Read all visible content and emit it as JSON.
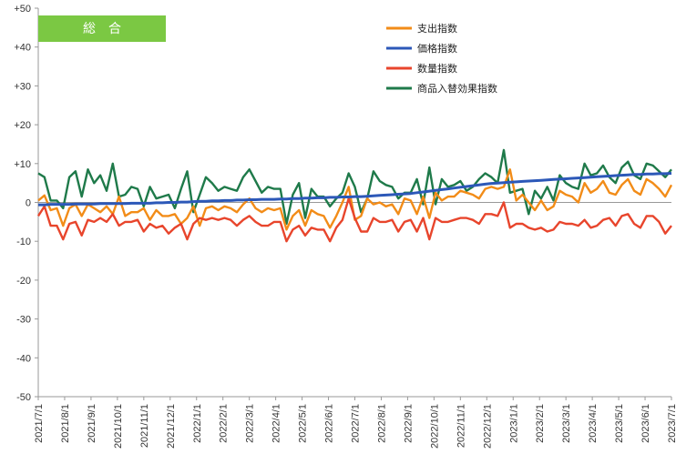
{
  "chart_data": {
    "type": "line",
    "title": "総　合",
    "title_color": "#7bc843",
    "ylim": [
      -50,
      50
    ],
    "yticks": [
      "+50",
      "+40",
      "+30",
      "+20",
      "+10",
      "0",
      "-10",
      "-20",
      "-30",
      "-40",
      "-50"
    ],
    "ytick_values": [
      50,
      40,
      30,
      20,
      10,
      0,
      -10,
      -20,
      -30,
      -40,
      -50
    ],
    "xtick_labels": [
      "2021/7/1",
      "2021/8/1",
      "2021/9/1",
      "2021/10/1",
      "2021/11/1",
      "2021/12/1",
      "2022/1/1",
      "2022/2/1",
      "2022/3/1",
      "2022/4/1",
      "2022/5/1",
      "2022/6/1",
      "2022/7/1",
      "2022/8/1",
      "2022/9/1",
      "2022/10/1",
      "2022/11/1",
      "2022/12/1",
      "2023/1/1",
      "2023/2/1",
      "2023/3/1",
      "2023/4/1",
      "2023/5/1",
      "2023/6/1",
      "2023/7/1"
    ],
    "points_per_month": 4,
    "grid": false,
    "legend_position": "top-right",
    "series": [
      {
        "name": "支出指数",
        "color": "#f28c18",
        "values": [
          0.5,
          1.8,
          -2.0,
          -1.5,
          -6.0,
          -1.5,
          -0.5,
          -3.5,
          -0.5,
          -1.5,
          -2.5,
          -1.0,
          -3.0,
          1.5,
          -3.5,
          -2.5,
          -2.5,
          -1.5,
          -4.5,
          -2.0,
          -3.5,
          -3.5,
          -3.0,
          -5.5,
          -4.0,
          -1.0,
          -6.0,
          -1.5,
          -1.0,
          -2.0,
          -1.0,
          -1.5,
          -2.5,
          -0.5,
          1.0,
          -1.5,
          -2.5,
          -1.5,
          -2.0,
          -1.5,
          -7.0,
          -3.5,
          -2.0,
          -6.0,
          -2.0,
          -3.0,
          -3.5,
          -6.5,
          -3.5,
          0.0,
          4.0,
          -4.5,
          -3.5,
          1.0,
          -0.5,
          0.0,
          -1.0,
          -0.5,
          -3.0,
          1.0,
          0.5,
          -3.0,
          1.5,
          -4.0,
          2.5,
          0.5,
          1.5,
          1.5,
          3.0,
          2.5,
          2.0,
          1.0,
          3.5,
          4.0,
          3.5,
          4.0,
          8.5,
          0.5,
          2.0,
          0.0,
          -2.0,
          0.5,
          -2.0,
          -1.0,
          3.0,
          2.0,
          1.5,
          0.0,
          5.0,
          2.5,
          3.5,
          5.5,
          2.5,
          2.0,
          4.5,
          6.0,
          3.0,
          2.0,
          6.0,
          5.0,
          3.5,
          1.5,
          4.5
        ]
      },
      {
        "name": "価格指数",
        "color": "#2c58b8",
        "values": [
          -0.6,
          -0.6,
          -0.5,
          -0.5,
          -0.5,
          -0.5,
          -0.4,
          -0.4,
          -0.4,
          -0.4,
          -0.3,
          -0.3,
          -0.3,
          -0.3,
          -0.3,
          -0.2,
          -0.2,
          -0.2,
          -0.2,
          -0.1,
          -0.1,
          0.0,
          0.0,
          0.1,
          0.1,
          0.2,
          0.3,
          0.3,
          0.4,
          0.4,
          0.5,
          0.5,
          0.6,
          0.6,
          0.7,
          0.7,
          0.8,
          0.8,
          0.8,
          0.9,
          0.9,
          1.0,
          1.0,
          1.1,
          1.1,
          1.2,
          1.2,
          1.3,
          1.3,
          1.4,
          1.4,
          1.5,
          1.5,
          1.6,
          1.7,
          1.8,
          1.9,
          2.0,
          2.1,
          2.2,
          2.3,
          2.5,
          2.7,
          2.9,
          3.1,
          3.3,
          3.5,
          3.7,
          3.9,
          4.1,
          4.3,
          4.5,
          4.7,
          4.9,
          5.0,
          5.1,
          5.2,
          5.3,
          5.4,
          5.5,
          5.6,
          5.7,
          5.8,
          5.9,
          6.0,
          6.1,
          6.2,
          6.3,
          6.4,
          6.5,
          6.6,
          6.7,
          6.8,
          6.9,
          7.0,
          7.1,
          7.2,
          7.2,
          7.3,
          7.3,
          7.4,
          7.4,
          7.5
        ]
      },
      {
        "name": "数量指数",
        "color": "#e8452c",
        "values": [
          -3.5,
          -1.0,
          -6.0,
          -6.0,
          -9.5,
          -5.5,
          -5.0,
          -8.5,
          -4.5,
          -5.0,
          -4.0,
          -5.0,
          -3.0,
          -6.0,
          -5.0,
          -5.0,
          -4.5,
          -7.5,
          -5.5,
          -6.5,
          -6.0,
          -8.0,
          -6.5,
          -5.5,
          -9.5,
          -5.5,
          -4.0,
          -4.5,
          -4.0,
          -4.5,
          -4.0,
          -4.5,
          -6.0,
          -4.5,
          -3.5,
          -5.0,
          -6.0,
          -6.0,
          -5.0,
          -5.0,
          -10.0,
          -7.0,
          -6.0,
          -8.5,
          -6.5,
          -7.0,
          -7.0,
          -10.0,
          -6.5,
          -4.5,
          1.0,
          -4.0,
          -7.5,
          -7.5,
          -4.0,
          -5.0,
          -5.0,
          -4.5,
          -7.5,
          -5.0,
          -4.5,
          -7.5,
          -4.0,
          -9.5,
          -4.0,
          -5.0,
          -5.0,
          -4.5,
          -4.0,
          -4.0,
          -4.5,
          -5.5,
          -3.0,
          -3.0,
          -3.5,
          0.0,
          -6.5,
          -5.5,
          -5.5,
          -6.5,
          -7.0,
          -6.5,
          -7.5,
          -7.0,
          -5.0,
          -5.5,
          -5.5,
          -6.0,
          -4.5,
          -6.5,
          -6.0,
          -4.5,
          -4.0,
          -6.0,
          -3.5,
          -3.0,
          -5.5,
          -6.5,
          -3.5,
          -3.5,
          -5.0,
          -8.0,
          -6.0
        ]
      },
      {
        "name": "商品入替効果指数",
        "color": "#1f7a4a",
        "values": [
          7.5,
          6.5,
          0.5,
          0.5,
          -1.5,
          6.5,
          8.0,
          1.5,
          8.5,
          5.0,
          7.0,
          3.0,
          10.0,
          1.5,
          2.0,
          4.0,
          3.5,
          -1.0,
          4.0,
          1.0,
          1.5,
          2.0,
          -1.5,
          3.5,
          8.0,
          -2.5,
          2.0,
          6.5,
          5.0,
          3.0,
          4.0,
          3.5,
          3.0,
          6.5,
          8.5,
          5.5,
          2.5,
          4.0,
          3.5,
          3.5,
          -5.5,
          2.0,
          5.0,
          -4.0,
          3.5,
          1.5,
          1.5,
          -1.0,
          1.0,
          2.5,
          7.5,
          4.0,
          -2.5,
          1.0,
          8.0,
          5.5,
          4.5,
          4.0,
          1.0,
          2.5,
          2.5,
          6.0,
          -0.5,
          9.0,
          -0.5,
          6.0,
          4.0,
          4.5,
          5.5,
          3.0,
          4.0,
          6.0,
          7.5,
          6.5,
          5.0,
          13.5,
          2.5,
          3.0,
          3.5,
          -3.0,
          3.0,
          1.0,
          4.0,
          0.5,
          7.0,
          5.0,
          4.0,
          3.5,
          10.0,
          7.0,
          7.5,
          9.5,
          6.5,
          5.0,
          9.0,
          10.5,
          7.0,
          6.0,
          10.0,
          9.5,
          8.0,
          6.5,
          8.5
        ]
      }
    ]
  }
}
